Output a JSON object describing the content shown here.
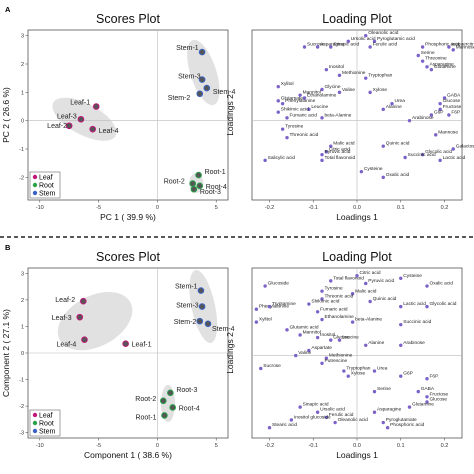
{
  "colors": {
    "leaf": "#c0187a",
    "root": "#2aa24a",
    "stem": "#3b62c4",
    "loading_point": "#7a62c8",
    "ellipse": "#c9c9c9"
  },
  "panel_labels": [
    "A",
    "B"
  ],
  "chart_data": [
    {
      "type": "scatter",
      "panel": "A",
      "title": "Scores Plot",
      "xlabel": "PC 1 ( 39.9 %)",
      "ylabel": "PC 2 ( 26.6 %)",
      "xlim": [
        -11,
        6
      ],
      "ylim": [
        -2.8,
        3.2
      ],
      "xticks": [
        "-10",
        "-5",
        "0",
        "5"
      ],
      "yticks": [
        "-2",
        "-1",
        "0",
        "1",
        "2",
        "3"
      ],
      "legend": [
        "Leaf",
        "Root",
        "Stem"
      ],
      "legend_position": "bottom-left",
      "points": [
        {
          "label": "Stem-1",
          "x": 3.8,
          "y": 2.42,
          "group": "stem"
        },
        {
          "label": "Stem-3",
          "x": 3.8,
          "y": 1.45,
          "group": "stem"
        },
        {
          "label": "Stem-4",
          "x": 4.2,
          "y": 1.15,
          "group": "stem"
        },
        {
          "label": "Stem-2",
          "x": 3.6,
          "y": 0.95,
          "group": "stem"
        },
        {
          "label": "Leaf-1",
          "x": -5.2,
          "y": 0.5,
          "group": "leaf"
        },
        {
          "label": "Leaf-3",
          "x": -6.5,
          "y": 0.05,
          "group": "leaf"
        },
        {
          "label": "Leaf-2",
          "x": -7.5,
          "y": -0.18,
          "group": "leaf"
        },
        {
          "label": "Leaf-4",
          "x": -5.5,
          "y": -0.3,
          "group": "leaf"
        },
        {
          "label": "Root-1",
          "x": 3.5,
          "y": -1.92,
          "group": "root"
        },
        {
          "label": "Root-2",
          "x": 3.0,
          "y": -2.22,
          "group": "root"
        },
        {
          "label": "Root-4",
          "x": 3.6,
          "y": -2.3,
          "group": "root"
        },
        {
          "label": "Root-3",
          "x": 3.1,
          "y": -2.42,
          "group": "root"
        }
      ]
    },
    {
      "type": "scatter",
      "panel": "A",
      "title": "Loading Plot",
      "xlabel": "Loadings 1",
      "ylabel": "Loadings 2",
      "xlim": [
        -0.24,
        0.24
      ],
      "ylim": [
        -0.28,
        0.32
      ],
      "xticks": [
        "-0.2",
        "-0.1",
        "0.0",
        "0.1",
        "0.2"
      ],
      "points": [
        {
          "label": "Oleanolic acid",
          "x": 0.02,
          "y": 0.3
        },
        {
          "label": "Ursolic acid",
          "x": -0.02,
          "y": 0.28
        },
        {
          "label": "Pyroglutamic acid",
          "x": 0.04,
          "y": 0.28
        },
        {
          "label": "Ferulic acid",
          "x": 0.03,
          "y": 0.26
        },
        {
          "label": "Phosphoric acid",
          "x": 0.15,
          "y": 0.26
        },
        {
          "label": "Sucrose",
          "x": -0.12,
          "y": 0.26
        },
        {
          "label": "Asparagine",
          "x": -0.09,
          "y": 0.26
        },
        {
          "label": "Sinapic acid",
          "x": -0.06,
          "y": 0.26
        },
        {
          "label": "Isoquercitrin",
          "x": 0.21,
          "y": 0.26
        },
        {
          "label": "Mannose",
          "x": 0.22,
          "y": 0.25
        },
        {
          "label": "Serine",
          "x": 0.14,
          "y": 0.23
        },
        {
          "label": "Threonine",
          "x": 0.15,
          "y": 0.21
        },
        {
          "label": "Asparagine",
          "x": 0.16,
          "y": 0.19
        },
        {
          "label": "Glutamine",
          "x": 0.17,
          "y": 0.18
        },
        {
          "label": "Inositol",
          "x": -0.07,
          "y": 0.18
        },
        {
          "label": "Methionine",
          "x": -0.04,
          "y": 0.16
        },
        {
          "label": "Tryptophan",
          "x": 0.02,
          "y": 0.15
        },
        {
          "label": "Xylitol",
          "x": -0.18,
          "y": 0.12
        },
        {
          "label": "Glycine",
          "x": -0.08,
          "y": 0.11
        },
        {
          "label": "Valine",
          "x": -0.04,
          "y": 0.1
        },
        {
          "label": "Xylose",
          "x": 0.03,
          "y": 0.1
        },
        {
          "label": "Mannitol",
          "x": -0.13,
          "y": 0.09
        },
        {
          "label": "Ethanolamine",
          "x": -0.12,
          "y": 0.08
        },
        {
          "label": "Glutamate",
          "x": -0.18,
          "y": 0.07
        },
        {
          "label": "Phenylalanine",
          "x": -0.17,
          "y": 0.06
        },
        {
          "label": "Leucine",
          "x": -0.11,
          "y": 0.04
        },
        {
          "label": "Shikimic acid",
          "x": -0.18,
          "y": 0.03
        },
        {
          "label": "Fumaric acid",
          "x": -0.16,
          "y": 0.01
        },
        {
          "label": "beta-Alanine",
          "x": -0.08,
          "y": 0.01
        },
        {
          "label": "Urea",
          "x": 0.08,
          "y": 0.06
        },
        {
          "label": "Alanine",
          "x": 0.06,
          "y": 0.04
        },
        {
          "label": "GABA",
          "x": 0.2,
          "y": 0.08
        },
        {
          "label": "Glucose",
          "x": 0.19,
          "y": 0.06
        },
        {
          "label": "Fructose",
          "x": 0.19,
          "y": 0.04
        },
        {
          "label": "G6P",
          "x": 0.17,
          "y": 0.02
        },
        {
          "label": "F6P",
          "x": 0.21,
          "y": 0.02
        },
        {
          "label": "Arabinose",
          "x": 0.12,
          "y": 0.0
        },
        {
          "label": "Tyrosine",
          "x": -0.17,
          "y": -0.03
        },
        {
          "label": "Threonic acid",
          "x": -0.16,
          "y": -0.06
        },
        {
          "label": "Mannose",
          "x": 0.18,
          "y": -0.05
        },
        {
          "label": "Quinic acid",
          "x": 0.06,
          "y": -0.09
        },
        {
          "label": "Malic acid",
          "x": -0.06,
          "y": -0.09
        },
        {
          "label": "Citric acid",
          "x": -0.07,
          "y": -0.11
        },
        {
          "label": "Pyruvic acid",
          "x": -0.08,
          "y": -0.12
        },
        {
          "label": "Total flavonoid",
          "x": -0.08,
          "y": -0.14
        },
        {
          "label": "Galactose",
          "x": 0.22,
          "y": -0.1
        },
        {
          "label": "Glycolic acid",
          "x": 0.15,
          "y": -0.12
        },
        {
          "label": "Succinic acid",
          "x": 0.11,
          "y": -0.13
        },
        {
          "label": "Lactic acid",
          "x": 0.19,
          "y": -0.14
        },
        {
          "label": "Salicylic acid",
          "x": -0.21,
          "y": -0.14
        },
        {
          "label": "Cysteine",
          "x": 0.01,
          "y": -0.18
        },
        {
          "label": "Oxalic acid",
          "x": 0.06,
          "y": -0.2
        }
      ]
    },
    {
      "type": "scatter",
      "panel": "B",
      "title": "Scores Plot",
      "xlabel": "Component 1 ( 38.6 %)",
      "ylabel": "Component 2 ( 27.1 %)",
      "xlim": [
        -11,
        6
      ],
      "ylim": [
        -3.2,
        3.2
      ],
      "xticks": [
        "-10",
        "-5",
        "0",
        "5"
      ],
      "yticks": [
        "-3",
        "-2",
        "-1",
        "0",
        "1",
        "2",
        "3"
      ],
      "legend": [
        "Leaf",
        "Root",
        "Stem"
      ],
      "legend_position": "bottom-left",
      "points": [
        {
          "label": "Stem-1",
          "x": 3.7,
          "y": 2.35,
          "group": "stem"
        },
        {
          "label": "Stem-3",
          "x": 3.8,
          "y": 1.75,
          "group": "stem"
        },
        {
          "label": "Stem-2",
          "x": 3.6,
          "y": 1.2,
          "group": "stem"
        },
        {
          "label": "Stem-4",
          "x": 4.3,
          "y": 1.1,
          "group": "stem"
        },
        {
          "label": "Leaf-2",
          "x": -6.3,
          "y": 1.95,
          "group": "leaf"
        },
        {
          "label": "Leaf-3",
          "x": -6.6,
          "y": 1.35,
          "group": "leaf"
        },
        {
          "label": "Leaf-4",
          "x": -6.2,
          "y": 0.5,
          "group": "leaf"
        },
        {
          "label": "Leaf-1",
          "x": -2.7,
          "y": 0.35,
          "group": "leaf"
        },
        {
          "label": "Root-3",
          "x": 1.1,
          "y": -1.5,
          "group": "root"
        },
        {
          "label": "Root-2",
          "x": 0.5,
          "y": -1.8,
          "group": "root"
        },
        {
          "label": "Root-4",
          "x": 1.3,
          "y": -2.05,
          "group": "root"
        },
        {
          "label": "Root-1",
          "x": 0.6,
          "y": -2.35,
          "group": "root"
        }
      ]
    },
    {
      "type": "scatter",
      "panel": "B",
      "title": "Loading Plot",
      "xlabel": "Loadings 1",
      "ylabel": "Loadings 2",
      "xlim": [
        -0.24,
        0.24
      ],
      "ylim": [
        -0.32,
        0.34
      ],
      "xticks": [
        "-0.2",
        "-0.1",
        "0.0",
        "0.1",
        "0.2"
      ],
      "points": [
        {
          "label": "Citric acid",
          "x": 0.0,
          "y": 0.31
        },
        {
          "label": "Cysteine",
          "x": 0.1,
          "y": 0.3
        },
        {
          "label": "Total flavonoid",
          "x": -0.06,
          "y": 0.29
        },
        {
          "label": "Pyruvic acid",
          "x": 0.02,
          "y": 0.28
        },
        {
          "label": "Oxalic acid",
          "x": 0.16,
          "y": 0.27
        },
        {
          "label": "Glucoside",
          "x": -0.21,
          "y": 0.27
        },
        {
          "label": "Tyrosine",
          "x": -0.08,
          "y": 0.25
        },
        {
          "label": "Malic acid",
          "x": -0.01,
          "y": 0.24
        },
        {
          "label": "Threonic acid",
          "x": -0.08,
          "y": 0.22
        },
        {
          "label": "Quinic acid",
          "x": 0.03,
          "y": 0.21
        },
        {
          "label": "Shikimic acid",
          "x": -0.11,
          "y": 0.2
        },
        {
          "label": "Lactic acid",
          "x": 0.1,
          "y": 0.19
        },
        {
          "label": "Phenylalanine",
          "x": -0.23,
          "y": 0.18
        },
        {
          "label": "Tryptamine",
          "x": -0.2,
          "y": 0.19
        },
        {
          "label": "Fumaric acid",
          "x": -0.09,
          "y": 0.17
        },
        {
          "label": "Ethanolamine",
          "x": -0.08,
          "y": 0.14
        },
        {
          "label": "beta-Alanine",
          "x": -0.01,
          "y": 0.13
        },
        {
          "label": "Glycolic acid",
          "x": 0.16,
          "y": 0.19
        },
        {
          "label": "Succinic acid",
          "x": 0.1,
          "y": 0.12
        },
        {
          "label": "Xylitol",
          "x": -0.23,
          "y": 0.13
        },
        {
          "label": "Glutamic acid",
          "x": -0.16,
          "y": 0.1
        },
        {
          "label": "Mannitol",
          "x": -0.13,
          "y": 0.08
        },
        {
          "label": "Inositol",
          "x": -0.09,
          "y": 0.07
        },
        {
          "label": "Glycine",
          "x": -0.06,
          "y": 0.06
        },
        {
          "label": "Leucine",
          "x": -0.04,
          "y": 0.06
        },
        {
          "label": "Alanine",
          "x": 0.02,
          "y": 0.04
        },
        {
          "label": "Arabinose",
          "x": 0.1,
          "y": 0.04
        },
        {
          "label": "Aspartate",
          "x": -0.11,
          "y": 0.02
        },
        {
          "label": "Valine",
          "x": -0.14,
          "y": 0.0
        },
        {
          "label": "Methionine",
          "x": -0.07,
          "y": -0.01
        },
        {
          "label": "Putrescine",
          "x": -0.08,
          "y": -0.03
        },
        {
          "label": "Tryptophan",
          "x": -0.03,
          "y": -0.06
        },
        {
          "label": "Xylose",
          "x": -0.02,
          "y": -0.08
        },
        {
          "label": "Urea",
          "x": 0.04,
          "y": -0.06
        },
        {
          "label": "G6P",
          "x": 0.1,
          "y": -0.08
        },
        {
          "label": "F6P",
          "x": 0.16,
          "y": -0.09
        },
        {
          "label": "Sucrose",
          "x": -0.22,
          "y": -0.05
        },
        {
          "label": "Serine",
          "x": 0.04,
          "y": -0.14
        },
        {
          "label": "GABA",
          "x": 0.14,
          "y": -0.14
        },
        {
          "label": "Fructose",
          "x": 0.16,
          "y": -0.16
        },
        {
          "label": "Glucose",
          "x": 0.16,
          "y": -0.18
        },
        {
          "label": "Glutamine",
          "x": 0.12,
          "y": -0.2
        },
        {
          "label": "Asparagine",
          "x": 0.04,
          "y": -0.22
        },
        {
          "label": "Sinapic acid",
          "x": -0.13,
          "y": -0.2
        },
        {
          "label": "Oleanolic acid",
          "x": -0.05,
          "y": -0.26
        },
        {
          "label": "Ursolic acid",
          "x": -0.09,
          "y": -0.22
        },
        {
          "label": "Ferulic acid",
          "x": -0.07,
          "y": -0.24
        },
        {
          "label": "Pyroglutamate",
          "x": 0.06,
          "y": -0.26
        },
        {
          "label": "Phosphoric acid",
          "x": 0.07,
          "y": -0.28
        },
        {
          "label": "Inositol glucoside",
          "x": -0.15,
          "y": -0.25
        },
        {
          "label": "Stearic acid",
          "x": -0.2,
          "y": -0.28
        }
      ]
    }
  ]
}
